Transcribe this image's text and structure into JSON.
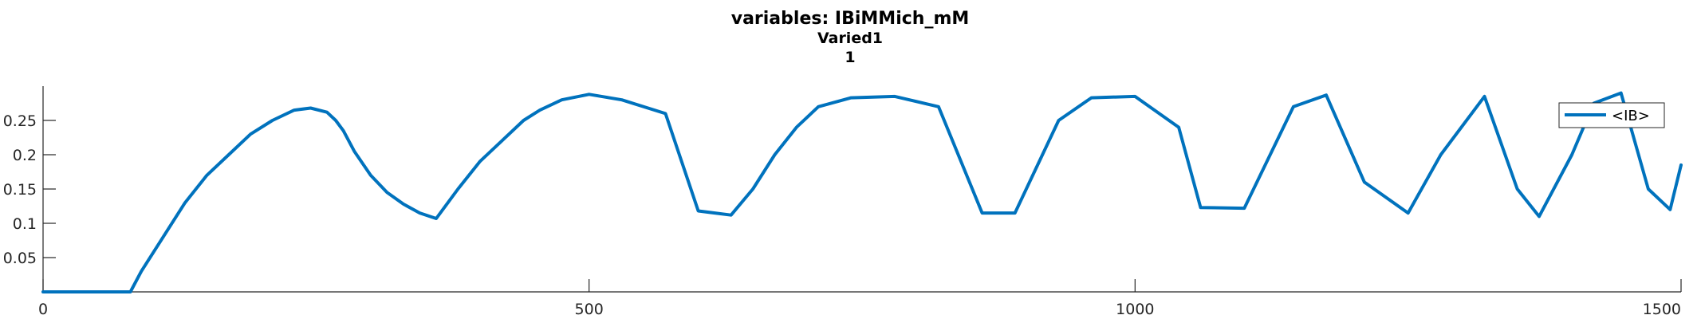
{
  "chart_data": {
    "type": "line",
    "title": "variables: IBiMMich_mM",
    "subtitle": "Varied1",
    "subtitle2": "1",
    "xlabel": "",
    "ylabel": "",
    "xlim": [
      0,
      1500
    ],
    "ylim": [
      0,
      0.3
    ],
    "x_ticks": [
      0,
      500,
      1000,
      1500
    ],
    "y_ticks": [
      0.05,
      0.1,
      0.15,
      0.2,
      0.25
    ],
    "grid": false,
    "legend_position": "top-right",
    "line_color": "#0072BD",
    "series": [
      {
        "name": "<IB>",
        "x": [
          0,
          40,
          80,
          90,
          110,
          130,
          150,
          170,
          190,
          210,
          230,
          245,
          260,
          268,
          275,
          285,
          300,
          315,
          330,
          345,
          360,
          380,
          400,
          420,
          440,
          455,
          475,
          500,
          530,
          570,
          600,
          630,
          650,
          670,
          690,
          710,
          740,
          780,
          820,
          860,
          890,
          930,
          960,
          1000,
          1040,
          1060,
          1100,
          1145,
          1175,
          1210,
          1250,
          1280,
          1320,
          1350,
          1370,
          1400,
          1420,
          1445,
          1470,
          1490,
          1500
        ],
        "y": [
          0.0,
          0.0,
          0.0,
          0.03,
          0.08,
          0.13,
          0.17,
          0.2,
          0.23,
          0.25,
          0.265,
          0.268,
          0.262,
          0.25,
          0.235,
          0.205,
          0.17,
          0.145,
          0.128,
          0.115,
          0.107,
          0.15,
          0.19,
          0.22,
          0.25,
          0.265,
          0.28,
          0.288,
          0.28,
          0.26,
          0.118,
          0.112,
          0.15,
          0.2,
          0.24,
          0.27,
          0.283,
          0.285,
          0.27,
          0.115,
          0.115,
          0.25,
          0.283,
          0.285,
          0.24,
          0.123,
          0.122,
          0.27,
          0.287,
          0.16,
          0.115,
          0.2,
          0.285,
          0.15,
          0.11,
          0.2,
          0.275,
          0.29,
          0.15,
          0.12,
          0.185
        ]
      }
    ]
  }
}
